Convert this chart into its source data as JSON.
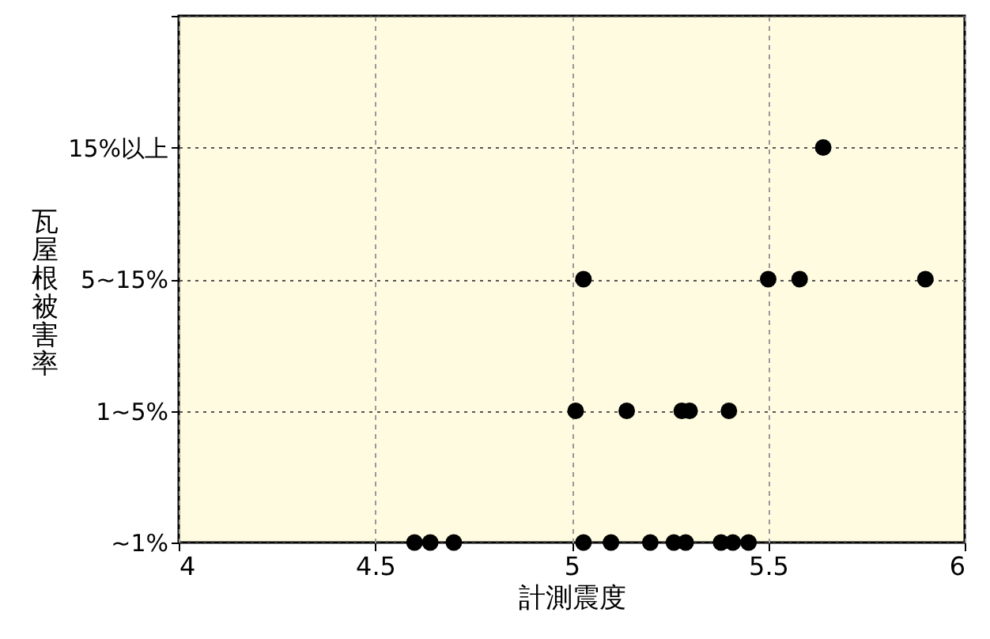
{
  "chart_data": {
    "type": "scatter",
    "orientation": "horizontal",
    "xlabel": "計測震度",
    "ylabel": "瓦屋根被害率",
    "categories": [
      null,
      "15%以上",
      "5~15%",
      "1~5%",
      "~1%"
    ],
    "series": [
      {
        "color": "#000000",
        "x": [
          "~1%",
          "~1%",
          "~1%",
          "~1%",
          "~1%",
          "~1%",
          "~1%",
          "~1%",
          "~1%",
          "~1%",
          "~1%",
          "1~5%",
          "1~5%",
          "1~5%",
          "1~5%",
          "1~5%",
          "5~15%",
          "5~15%",
          "5~15%",
          "5~15%",
          "15%以上"
        ],
        "values": [
          4.6,
          4.64,
          4.7,
          5.03,
          5.1,
          5.2,
          5.26,
          5.29,
          5.38,
          5.41,
          5.45,
          5.01,
          5.14,
          5.28,
          5.3,
          5.4,
          5.03,
          5.5,
          5.58,
          5.9,
          5.64
        ]
      }
    ],
    "marker": "circle",
    "xlim": [
      4,
      6
    ],
    "xticks": [
      4,
      4.5,
      5,
      5.5,
      6
    ],
    "grid": true
  }
}
